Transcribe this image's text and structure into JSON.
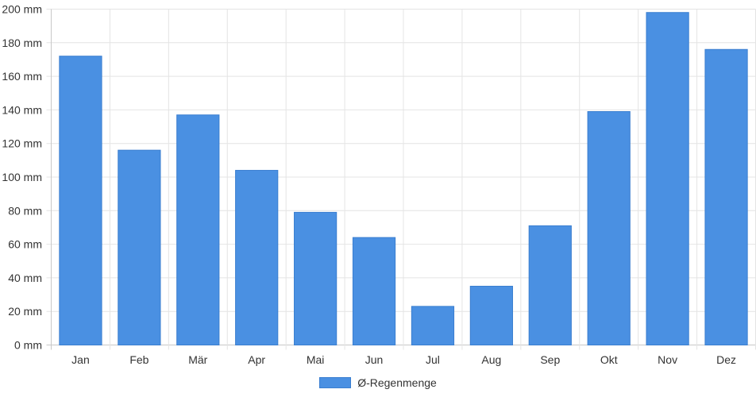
{
  "chart_data": {
    "type": "bar",
    "categories": [
      "Jan",
      "Feb",
      "Mär",
      "Apr",
      "Mai",
      "Jun",
      "Jul",
      "Aug",
      "Sep",
      "Okt",
      "Nov",
      "Dez"
    ],
    "series": [
      {
        "name": "Ø-Regenmenge",
        "values": [
          172,
          116,
          137,
          104,
          79,
          64,
          23,
          35,
          71,
          139,
          198,
          176
        ],
        "color": "#4a90e2"
      }
    ],
    "y_unit": "mm",
    "ylim": [
      0,
      200
    ],
    "y_ticks": [
      "0 mm",
      "20 mm",
      "40 mm",
      "60 mm",
      "80 mm",
      "100 mm",
      "120 mm",
      "140 mm",
      "160 mm",
      "180 mm",
      "200 mm"
    ],
    "grid": true,
    "legend_position": "bottom-center"
  }
}
